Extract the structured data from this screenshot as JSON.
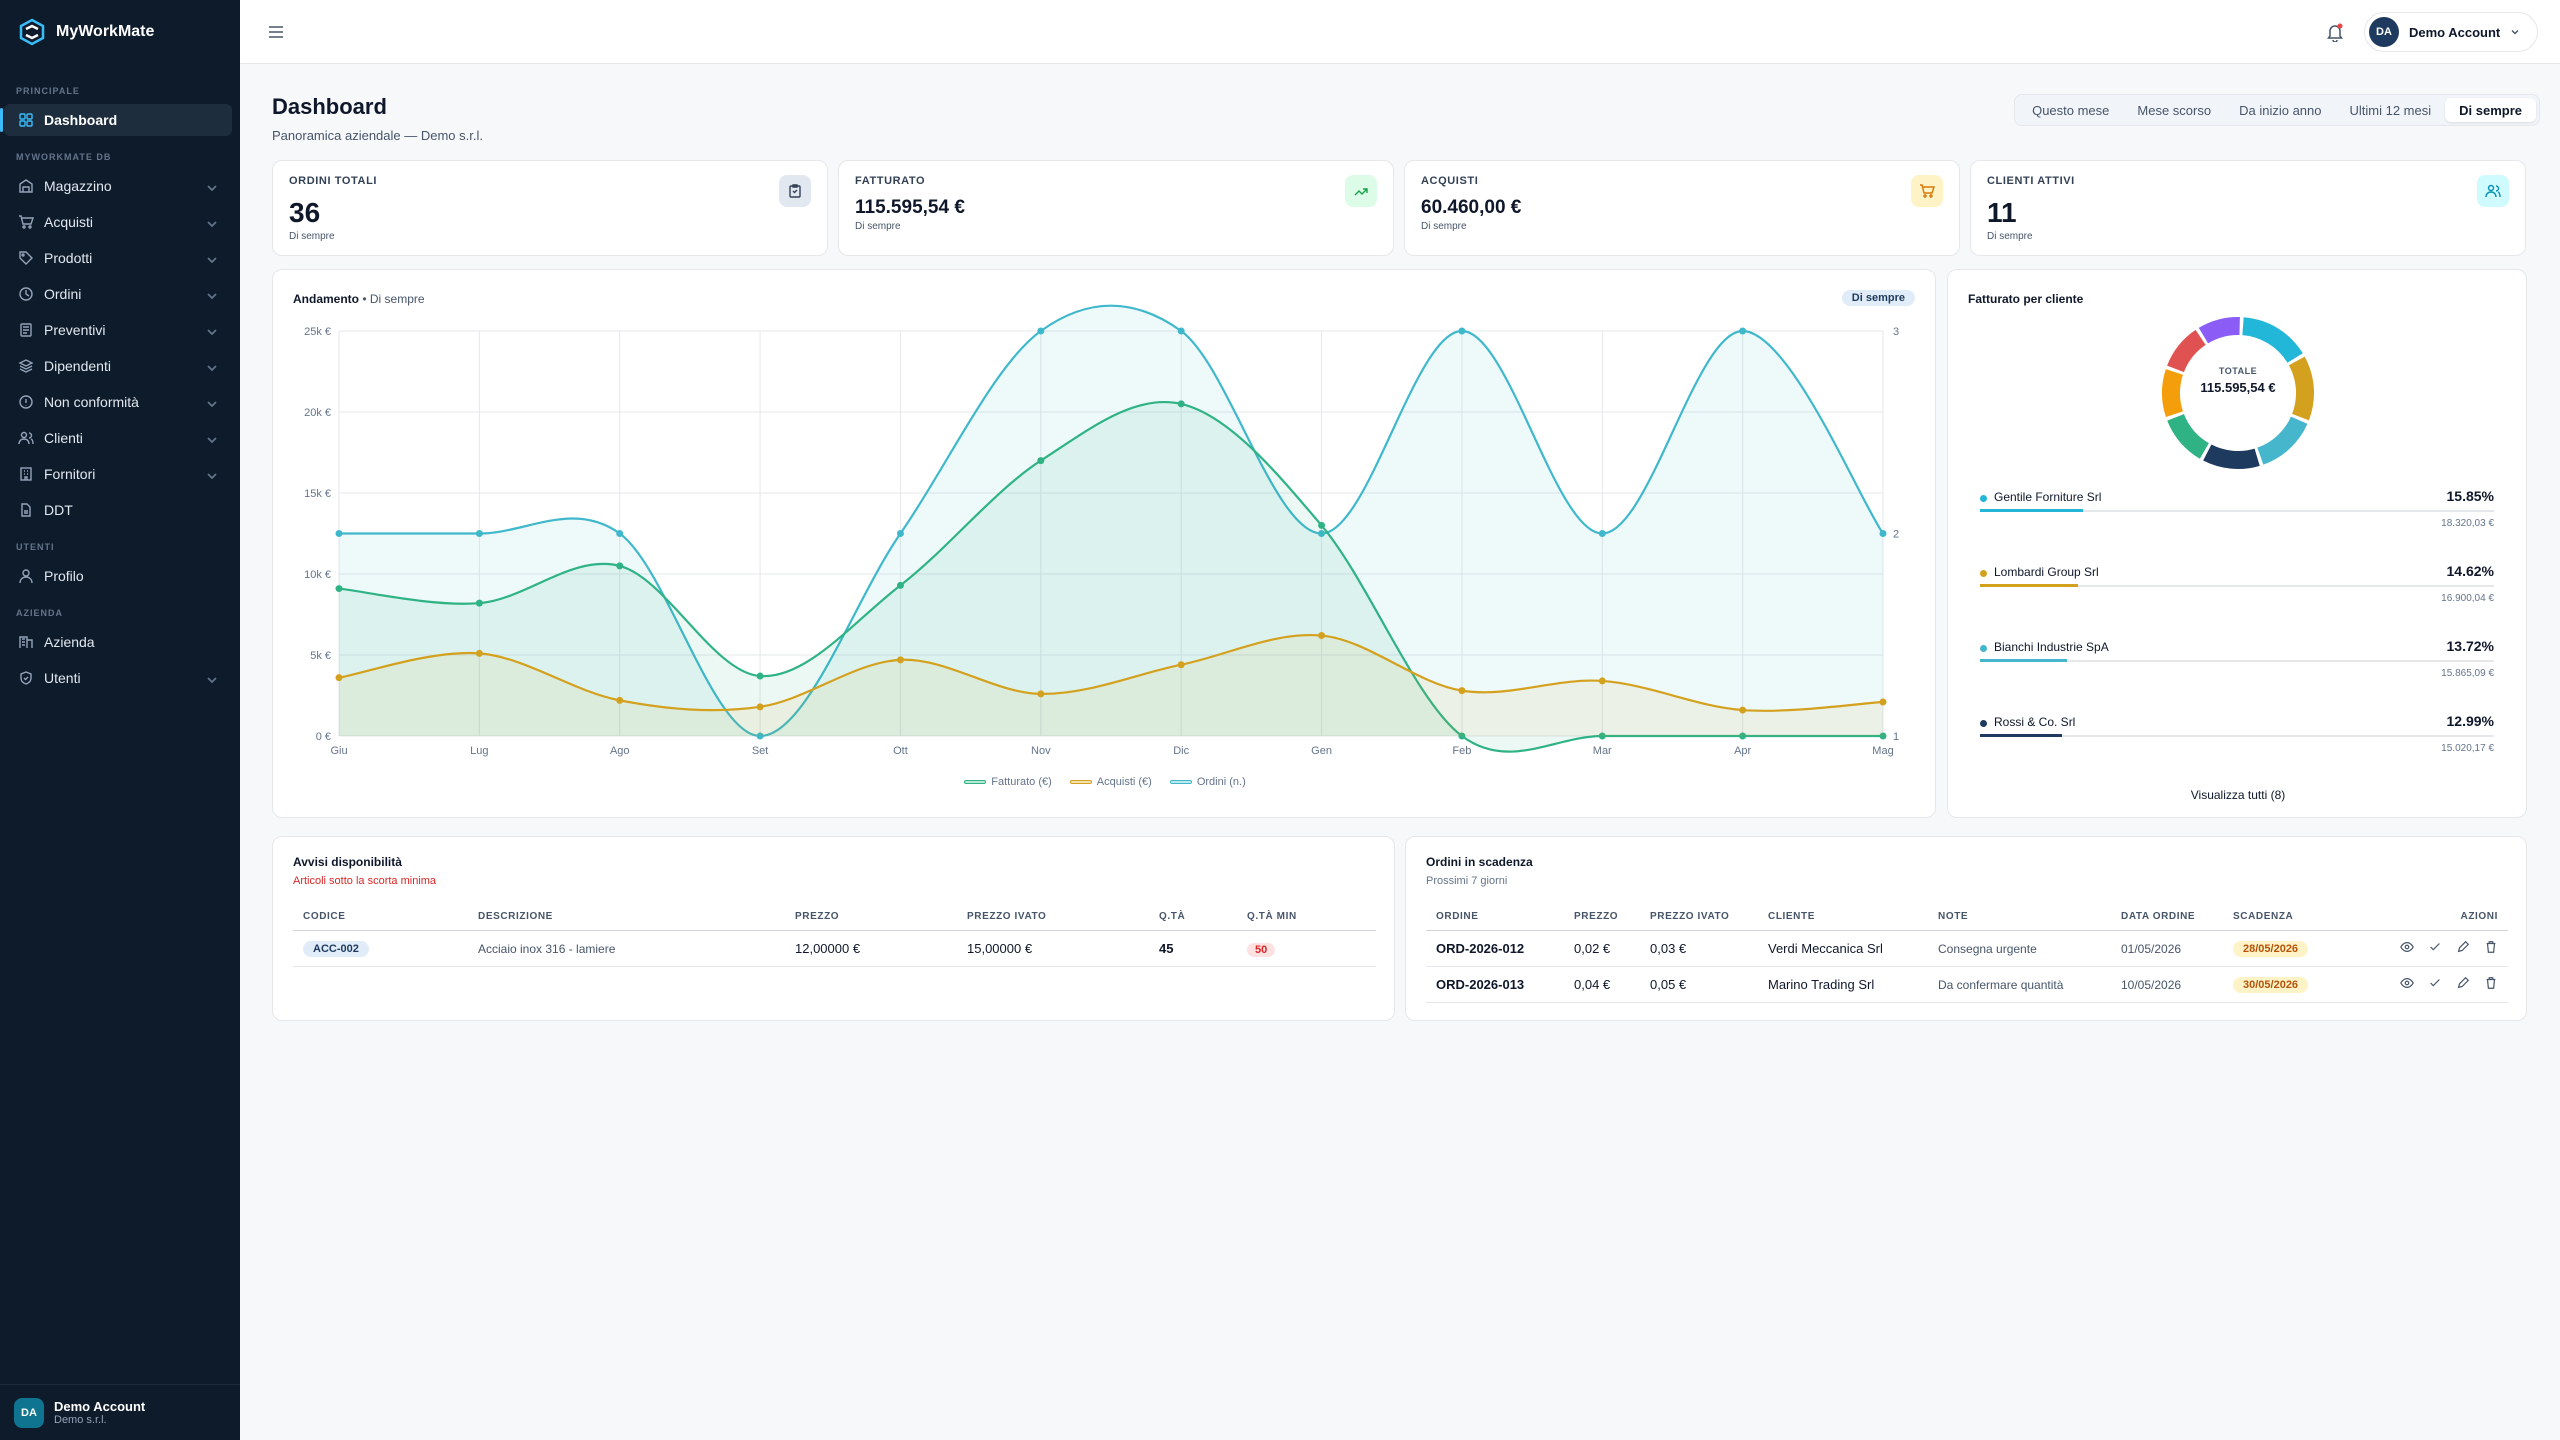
{
  "brand": {
    "name": "MyWorkMate"
  },
  "sidebar": {
    "sections": {
      "principale": "PRINCIPALE",
      "db": "MYWORKMATE DB",
      "utenti": "UTENTI",
      "azienda": "AZIENDA"
    },
    "items": [
      {
        "label": "Dashboard",
        "icon": "dashboard-icon"
      },
      {
        "label": "Magazzino",
        "icon": "warehouse-icon"
      },
      {
        "label": "Acquisti",
        "icon": "cart-icon"
      },
      {
        "label": "Prodotti",
        "icon": "tag-icon"
      },
      {
        "label": "Ordini",
        "icon": "clock-icon"
      },
      {
        "label": "Preventivi",
        "icon": "document-icon"
      },
      {
        "label": "Dipendenti",
        "icon": "stack-icon"
      },
      {
        "label": "Non conformità",
        "icon": "alert-circle-icon"
      },
      {
        "label": "Clienti",
        "icon": "users-icon"
      },
      {
        "label": "Fornitori",
        "icon": "building-icon"
      },
      {
        "label": "DDT",
        "icon": "file-icon"
      },
      {
        "label": "Profilo",
        "icon": "user-icon"
      },
      {
        "label": "Azienda",
        "icon": "company-icon"
      },
      {
        "label": "Utenti",
        "icon": "shield-icon"
      }
    ],
    "user": {
      "initials": "DA",
      "name": "Demo Account",
      "company": "Demo s.r.l."
    }
  },
  "topbar": {
    "user": {
      "initials": "DA",
      "name": "Demo Account"
    }
  },
  "page": {
    "title": "Dashboard",
    "subtitle": "Panoramica aziendale — Demo s.r.l.",
    "periods": [
      "Questo mese",
      "Mese scorso",
      "Da inizio anno",
      "Ultimi 12 mesi",
      "Di sempre"
    ],
    "active_period": "Di sempre"
  },
  "kpis": [
    {
      "label": "ORDINI TOTALI",
      "value": "36",
      "sub": "Di sempre",
      "icon": "clipboard-icon",
      "bg": "#e2e8f0",
      "fg": "#334155"
    },
    {
      "label": "FATTURATO",
      "value": "115.595,54 €",
      "sub": "Di sempre",
      "icon": "trend-up-icon",
      "bg": "#dcfce7",
      "fg": "#16a34a"
    },
    {
      "label": "ACQUISTI",
      "value": "60.460,00 €",
      "sub": "Di sempre",
      "icon": "cart-icon",
      "bg": "#fef3c7",
      "fg": "#d97706"
    },
    {
      "label": "CLIENTI ATTIVI",
      "value": "11",
      "sub": "Di sempre",
      "icon": "users-icon",
      "bg": "#cffafe",
      "fg": "#0891b2"
    }
  ],
  "trend": {
    "title": "Andamento",
    "period": "• Di sempre",
    "badge": "Di sempre"
  },
  "chart_data": {
    "type": "line",
    "categories": [
      "Giu",
      "Lug",
      "Ago",
      "Set",
      "Ott",
      "Nov",
      "Dic",
      "Gen",
      "Feb",
      "Mar",
      "Apr",
      "Mag"
    ],
    "y_left": {
      "ticks": [
        "0 €",
        "5k €",
        "10k €",
        "15k €",
        "20k €",
        "25k €"
      ],
      "max": 25000
    },
    "y_right": {
      "ticks": [
        "1",
        "2",
        "3"
      ],
      "min": 1,
      "max": 3
    },
    "series": [
      {
        "name": "Fatturato (€)",
        "color": "#2fb385",
        "axis": "left",
        "values": [
          9100,
          8200,
          10500,
          3700,
          9300,
          17000,
          20500,
          13000,
          0,
          0,
          0,
          0
        ]
      },
      {
        "name": "Acquisti (€)",
        "color": "#d4a11e",
        "axis": "left",
        "values": [
          3600,
          5100,
          2200,
          1800,
          4700,
          2600,
          4400,
          6200,
          2800,
          3400,
          1600,
          2100
        ]
      },
      {
        "name": "Ordini (n.)",
        "color": "#3fb8cc",
        "axis": "right",
        "values": [
          2,
          2,
          2,
          1,
          2,
          3,
          3,
          2,
          3,
          2,
          3,
          2
        ]
      }
    ]
  },
  "donut": {
    "title": "Fatturato per cliente",
    "center_label": "TOTALE",
    "center_value": "115.595,54 €",
    "slices": [
      {
        "color": "#22b7d8",
        "pct": 15.85
      },
      {
        "color": "#d4a11e",
        "pct": 14.62
      },
      {
        "color": "#45b6cc",
        "pct": 13.72
      },
      {
        "color": "#1e3a5f",
        "pct": 12.99
      },
      {
        "color": "#2fb385",
        "pct": 11.5
      },
      {
        "color": "#f59e0b",
        "pct": 11
      },
      {
        "color": "#e05252",
        "pct": 10.5
      },
      {
        "color": "#8b5cf6",
        "pct": 9.82
      }
    ],
    "legend": [
      {
        "name": "Gentile Forniture Srl",
        "pct": "15.85%",
        "amount": "18.320,03 €",
        "color": "#22b7d8",
        "fill": 0.2
      },
      {
        "name": "Lombardi Group Srl",
        "pct": "14.62%",
        "amount": "16.900,04 €",
        "color": "#d4a11e",
        "fill": 0.19
      },
      {
        "name": "Bianchi Industrie SpA",
        "pct": "13.72%",
        "amount": "15.865,09 €",
        "color": "#45b6cc",
        "fill": 0.17
      },
      {
        "name": "Rossi & Co. Srl",
        "pct": "12.99%",
        "amount": "15.020,17 €",
        "color": "#1e3a5f",
        "fill": 0.16
      }
    ],
    "view_all": "Visualizza tutti (8)"
  },
  "stock": {
    "title": "Avvisi disponibilità",
    "subtitle": "Articoli sotto la scorta minima",
    "headers": [
      "CODICE",
      "DESCRIZIONE",
      "PREZZO",
      "PREZZO IVATO",
      "Q.TÀ",
      "Q.TÀ MIN"
    ],
    "rows": [
      [
        "ACC-002",
        "Acciaio inox 316 - lamiere",
        "12,00000 €",
        "15,00000 €",
        "45",
        "50"
      ]
    ]
  },
  "orders": {
    "title": "Ordini in scadenza",
    "subtitle": "Prossimi 7 giorni",
    "headers": [
      "ORDINE",
      "PREZZO",
      "PREZZO IVATO",
      "CLIENTE",
      "NOTE",
      "DATA ORDINE",
      "SCADENZA",
      "AZIONI"
    ],
    "rows": [
      [
        "ORD-2026-012",
        "0,02 €",
        "0,03 €",
        "Verdi Meccanica Srl",
        "Consegna urgente",
        "01/05/2026",
        "28/05/2026"
      ],
      [
        "ORD-2026-013",
        "0,04 €",
        "0,05 €",
        "Marino Trading Srl",
        "Da confermare quantità",
        "10/05/2026",
        "30/05/2026"
      ]
    ]
  }
}
